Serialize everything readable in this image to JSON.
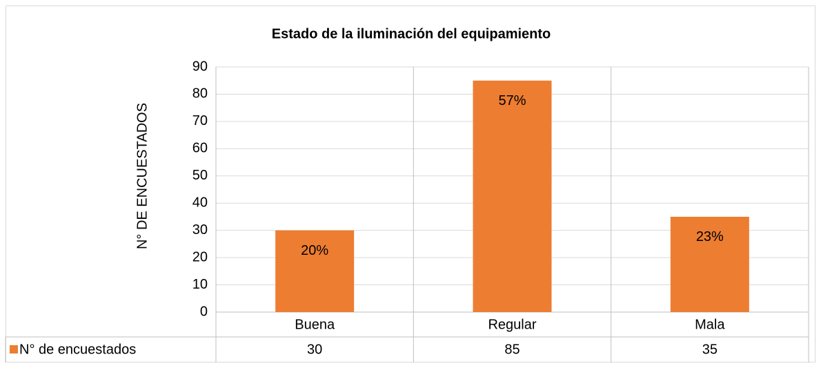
{
  "chart_data": {
    "type": "bar",
    "title": "Estado de la iluminación del equipamiento",
    "y_label": "N° DE ENCUESTADOS",
    "categories": [
      "Buena",
      "Regular",
      "Mala"
    ],
    "series": [
      {
        "name": "N° de encuestados",
        "color": "#ed7d31",
        "values": [
          30,
          85,
          35
        ]
      }
    ],
    "data_labels": [
      "20%",
      "57%",
      "23%"
    ],
    "ylim": [
      0,
      90
    ],
    "yticks": [
      0,
      10,
      20,
      30,
      40,
      50,
      60,
      70,
      80,
      90
    ],
    "grid": true
  }
}
